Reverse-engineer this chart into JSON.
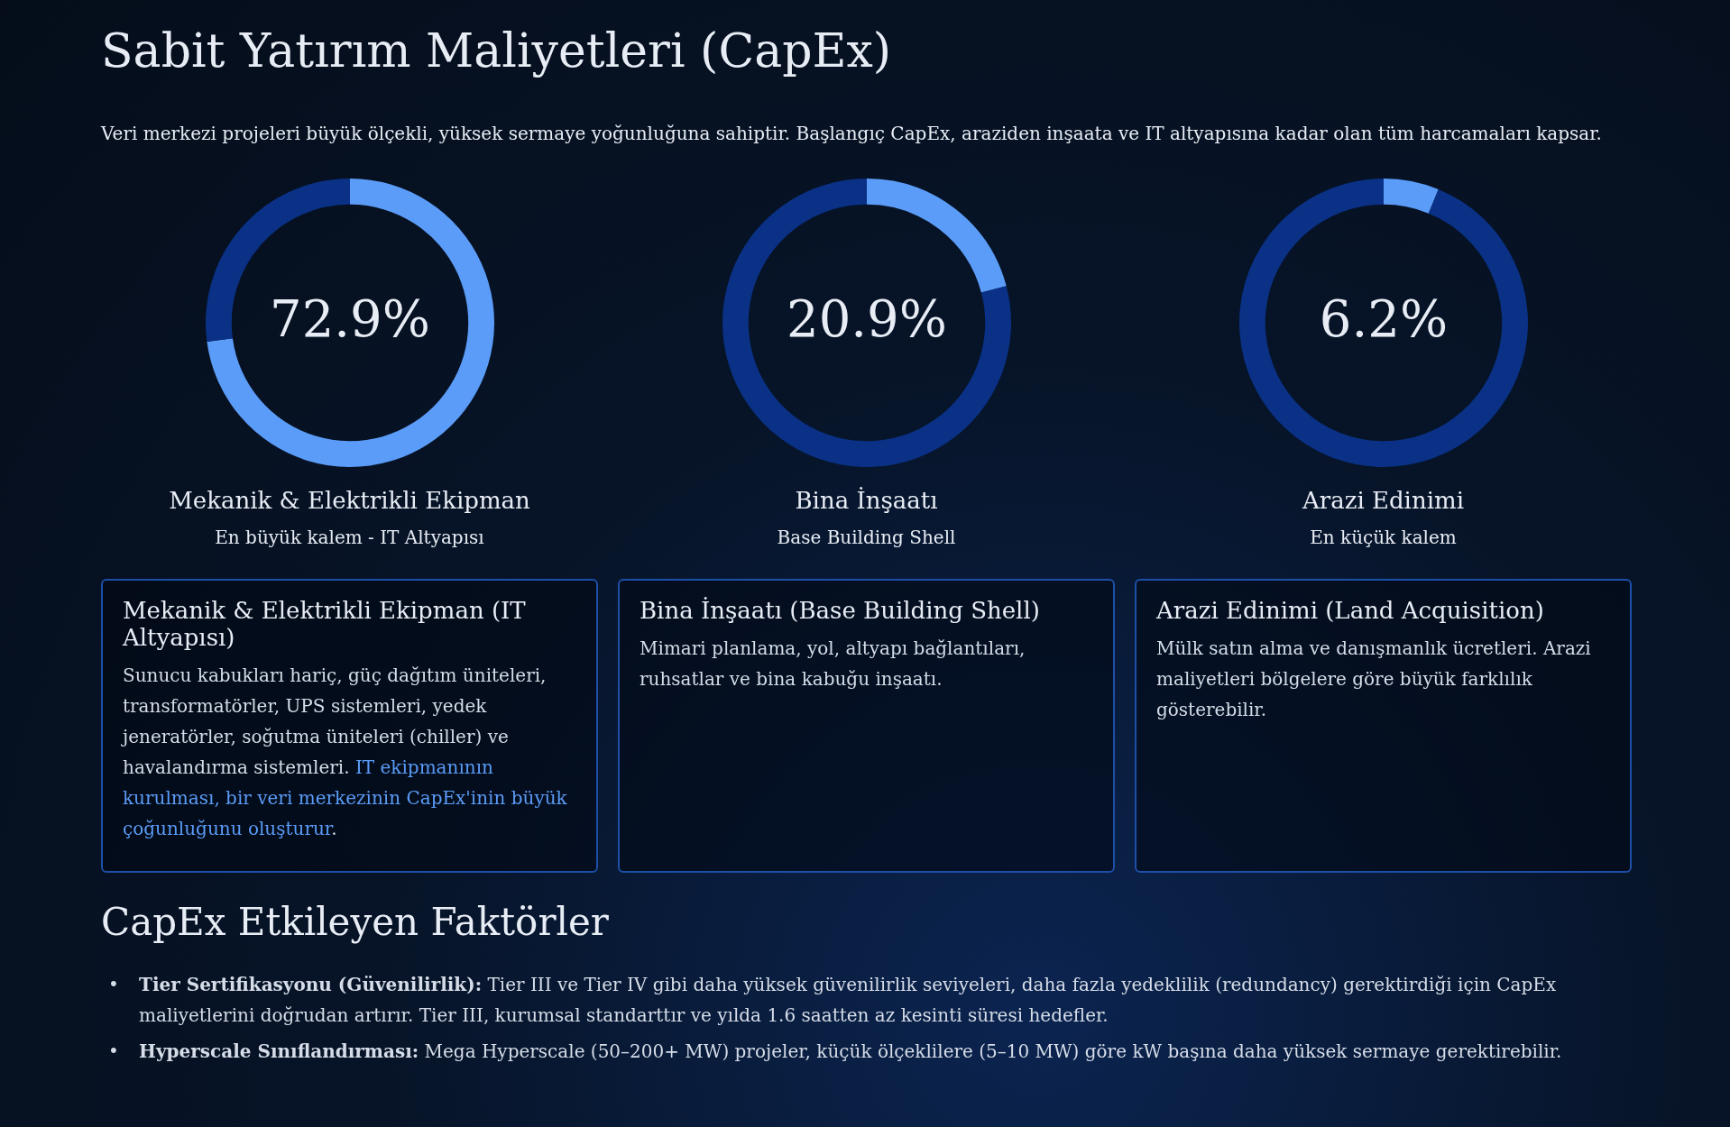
{
  "chart_data": [
    {
      "type": "other",
      "title": "Sabit Yatırım Maliyetleri (CapEx)",
      "subtitle": "Veri merkezi projeleri büyük ölçekli, yüksek sermaye yoğunluğuna sahiptir. Başlangıç CapEx, araziden inşaata ve IT altyapısına kadar olan tüm harcamaları kapsar."
    },
    {
      "type": "donut",
      "title": "Mekanik & Elektrikli Ekipman",
      "subtitle": "En büyük kalem - IT Altyapısı",
      "categories": [
        null,
        null
      ],
      "values": [
        72.9,
        27.1
      ],
      "colors": [
        "#5b9cf8",
        "#0a3185"
      ],
      "value_labels": [
        "72.9%",
        null
      ]
    },
    {
      "type": "donut",
      "title": "Bina İnşaatı",
      "subtitle": "Base Building Shell",
      "categories": [
        null,
        null
      ],
      "values": [
        20.9,
        79.1
      ],
      "colors": [
        "#5b9cf8",
        "#0a3185"
      ],
      "value_labels": [
        "20.9%",
        null
      ]
    },
    {
      "type": "donut",
      "title": "Arazi Edinimi",
      "subtitle": "En küçük kalem",
      "categories": [
        null,
        null
      ],
      "values": [
        6.2,
        93.8
      ],
      "colors": [
        "#5b9cf8",
        "#0a3185"
      ],
      "value_labels": [
        "6.2%",
        null
      ]
    },
    {
      "type": "other",
      "title": "Mekanik & Elektrikli Ekipman (IT Altyapısı)",
      "annotations": [
        "Sunucu kabukları hariç, güç dağıtım üniteleri, transformatörler, UPS sistemleri, yedek jeneratörler, soğutma üniteleri (chiller) ve havalandırma sistemleri. ",
        "IT ekipmanının kurulması, bir veri merkezinin CapEx'inin büyük çoğunluğunu oluşturur",
        "."
      ]
    },
    {
      "type": "other",
      "title": "Bina İnşaatı (Base Building Shell)",
      "annotations": [
        "Mimari planlama, yol, altyapı bağlantıları, ruhsatlar ve bina kabuğu inşaatı."
      ]
    },
    {
      "type": "other",
      "title": "Arazi Edinimi (Land Acquisition)",
      "annotations": [
        "Mülk satın alma ve danışmanlık ücretleri. Arazi maliyetleri bölgelere göre büyük farklılık gösterebilir."
      ]
    },
    {
      "type": "other",
      "title": "CapEx Etkileyen Faktörler",
      "annotations": [
        "• Tier Sertifikasyonu (Güvenilirlik): Tier III ve Tier IV gibi daha yüksek güvenilirlik seviyeleri, daha fazla yedeklilik (redundancy) gerektirdiği için CapEx maliyetlerini doğrudan artırır. Tier III, kurumsal standarttır ve yılda 1.6 saatten az kesinti süresi hedefler.",
        "• Hyperscale Sınıflandırması: Mega Hyperscale (50–200+ MW) projeler, küçük ölçeklilere (5–10 MW) göre kW başına daha yüksek sermaye gerektirebilir."
      ]
    }
  ]
}
